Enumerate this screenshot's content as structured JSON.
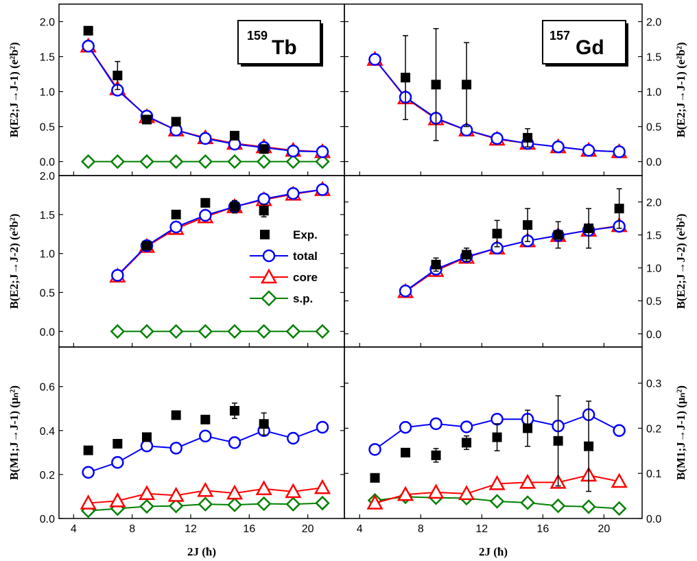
{
  "chart_data": [
    {
      "type": "line",
      "panel": "tb-e2-j1",
      "nucleus": "Tb",
      "mass": "159",
      "ylabel": "B(E2;J→J-1) (e²b²)",
      "xlabel": "",
      "xlim": [
        3,
        22.5
      ],
      "ylim": [
        -0.2,
        2.25
      ],
      "yticks": [
        "0.0",
        "0.5",
        "1.0",
        "1.5",
        "2.0"
      ],
      "xticks": [],
      "axis_side": "left",
      "series": [
        {
          "key": "total",
          "x": [
            5,
            7,
            9,
            11,
            13,
            15,
            17,
            19,
            21
          ],
          "y": [
            1.65,
            1.02,
            0.65,
            0.45,
            0.33,
            0.25,
            0.2,
            0.15,
            0.14
          ]
        },
        {
          "key": "core",
          "x": [
            5,
            7,
            9,
            11,
            13,
            15,
            17,
            19,
            21
          ],
          "y": [
            1.65,
            1.04,
            0.64,
            0.45,
            0.34,
            0.26,
            0.21,
            0.16,
            0.14
          ]
        },
        {
          "key": "sp",
          "x": [
            5,
            7,
            9,
            11,
            13,
            15,
            17,
            19,
            21
          ],
          "y": [
            0,
            0,
            0,
            0,
            0,
            0,
            0,
            0,
            0
          ]
        }
      ],
      "exp": {
        "x": [
          5,
          7,
          9,
          11,
          15,
          17
        ],
        "y": [
          1.87,
          1.23,
          0.6,
          0.57,
          0.37,
          0.18
        ],
        "err": [
          0,
          0.2,
          0,
          0,
          0,
          0
        ]
      }
    },
    {
      "type": "line",
      "panel": "gd-e2-j1",
      "nucleus": "Gd",
      "mass": "157",
      "ylabel": "B(E2;J→J-1) (e²b²)",
      "xlabel": "",
      "xlim": [
        3,
        22.5
      ],
      "ylim": [
        -0.2,
        2.25
      ],
      "yticks": [
        "0.0",
        "0.5",
        "1.0",
        "1.5",
        "2.0"
      ],
      "xticks": [],
      "axis_side": "right",
      "series": [
        {
          "key": "total",
          "x": [
            5,
            7,
            9,
            11,
            13,
            15,
            17,
            19,
            21
          ],
          "y": [
            1.46,
            0.92,
            0.62,
            0.45,
            0.33,
            0.26,
            0.21,
            0.16,
            0.14
          ]
        },
        {
          "key": "core",
          "x": [
            5,
            7,
            9,
            11,
            13,
            15,
            17,
            19,
            21
          ],
          "y": [
            1.46,
            0.91,
            0.61,
            0.45,
            0.32,
            0.26,
            0.21,
            0.16,
            0.14
          ]
        }
      ],
      "exp": {
        "x": [
          7,
          9,
          11,
          15
        ],
        "y": [
          1.2,
          1.1,
          1.1,
          0.34
        ],
        "err": [
          0.6,
          0.8,
          0.6,
          0.13
        ]
      }
    },
    {
      "type": "line",
      "panel": "tb-e2-j2",
      "ylabel": "B(E2;J→J-2) (e²b²)",
      "xlabel": "",
      "xlim": [
        3,
        22.5
      ],
      "ylim": [
        -0.2,
        2.0
      ],
      "yticks": [
        "0.0",
        "0.5",
        "1.0",
        "1.5",
        "2.0"
      ],
      "xticks": [],
      "axis_side": "left",
      "series": [
        {
          "key": "total",
          "x": [
            7,
            9,
            11,
            13,
            15,
            17,
            19,
            21
          ],
          "y": [
            0.72,
            1.1,
            1.34,
            1.49,
            1.6,
            1.7,
            1.77,
            1.82
          ]
        },
        {
          "key": "core",
          "x": [
            7,
            9,
            11,
            13,
            15,
            17,
            19,
            21
          ],
          "y": [
            0.71,
            1.09,
            1.32,
            1.47,
            1.6,
            1.69,
            1.76,
            1.82
          ]
        },
        {
          "key": "sp",
          "x": [
            7,
            9,
            11,
            13,
            15,
            17,
            19,
            21
          ],
          "y": [
            0,
            0,
            0,
            0,
            0,
            0,
            0,
            0
          ]
        }
      ],
      "exp": {
        "x": [
          9,
          11,
          13,
          15,
          17
        ],
        "y": [
          1.1,
          1.5,
          1.65,
          1.6,
          1.55
        ],
        "err": [
          0,
          0,
          0,
          0.08,
          0.08
        ]
      }
    },
    {
      "type": "line",
      "panel": "gd-e2-j2",
      "ylabel": "B(E2;J→J-2) (e²b²)",
      "xlabel": "",
      "xlim": [
        3,
        22.5
      ],
      "ylim": [
        -0.2,
        2.4
      ],
      "yticks": [
        "0.0",
        "0.5",
        "1.0",
        "1.5",
        "2.0"
      ],
      "xticks": [],
      "axis_side": "right",
      "series": [
        {
          "key": "total",
          "x": [
            7,
            9,
            11,
            13,
            15,
            17,
            19,
            21
          ],
          "y": [
            0.65,
            0.98,
            1.17,
            1.3,
            1.41,
            1.49,
            1.57,
            1.63
          ]
        },
        {
          "key": "core",
          "x": [
            7,
            9,
            11,
            13,
            15,
            17,
            19,
            21
          ],
          "y": [
            0.64,
            0.96,
            1.16,
            1.3,
            1.41,
            1.49,
            1.57,
            1.64
          ]
        }
      ],
      "exp": {
        "x": [
          9,
          11,
          13,
          15,
          17,
          19,
          21
        ],
        "y": [
          1.05,
          1.2,
          1.52,
          1.65,
          1.5,
          1.6,
          1.9
        ],
        "err": [
          0.1,
          0.1,
          0.2,
          0.25,
          0.2,
          0.3,
          0.3
        ]
      }
    },
    {
      "type": "line",
      "panel": "tb-m1",
      "ylabel": "B(M1;J→J-1) (μₙ²)",
      "xlabel": "2J (ħ)",
      "xlim": [
        3,
        22.5
      ],
      "ylim": [
        0,
        0.78
      ],
      "yticks": [
        "0.0",
        "0.2",
        "0.4",
        "0.6"
      ],
      "xticks": [
        "4",
        "8",
        "12",
        "16",
        "20"
      ],
      "axis_side": "left",
      "series": [
        {
          "key": "total",
          "x": [
            5,
            7,
            9,
            11,
            13,
            15,
            17,
            19,
            21
          ],
          "y": [
            0.21,
            0.255,
            0.33,
            0.32,
            0.375,
            0.345,
            0.4,
            0.365,
            0.415
          ]
        },
        {
          "key": "core",
          "x": [
            5,
            7,
            9,
            11,
            13,
            15,
            17,
            19,
            21
          ],
          "y": [
            0.07,
            0.08,
            0.113,
            0.105,
            0.127,
            0.115,
            0.135,
            0.122,
            0.14
          ]
        },
        {
          "key": "sp",
          "x": [
            5,
            7,
            9,
            11,
            13,
            15,
            17,
            19,
            21
          ],
          "y": [
            0.035,
            0.045,
            0.055,
            0.057,
            0.065,
            0.062,
            0.067,
            0.065,
            0.07
          ]
        }
      ],
      "exp": {
        "x": [
          5,
          7,
          9,
          11,
          13,
          15,
          17
        ],
        "y": [
          0.31,
          0.34,
          0.37,
          0.47,
          0.45,
          0.49,
          0.43
        ],
        "err": [
          0,
          0,
          0,
          0,
          0,
          0.035,
          0.05
        ]
      }
    },
    {
      "type": "line",
      "panel": "gd-m1",
      "ylabel": "B(M1;J→J-1) (μₙ²)",
      "xlabel": "2J (ħ)",
      "xlim": [
        3,
        22.5
      ],
      "ylim": [
        0,
        0.38
      ],
      "yticks": [
        "0.0",
        "0.1",
        "0.2",
        "0.3"
      ],
      "xticks": [
        "4",
        "8",
        "12",
        "16",
        "20"
      ],
      "axis_side": "right",
      "series": [
        {
          "key": "total",
          "x": [
            5,
            7,
            9,
            11,
            13,
            15,
            17,
            19,
            21
          ],
          "y": [
            0.153,
            0.202,
            0.21,
            0.203,
            0.22,
            0.22,
            0.205,
            0.23,
            0.195
          ]
        },
        {
          "key": "core",
          "x": [
            5,
            7,
            9,
            11,
            13,
            15,
            17,
            19,
            21
          ],
          "y": [
            0.034,
            0.053,
            0.058,
            0.055,
            0.077,
            0.08,
            0.08,
            0.096,
            0.082
          ]
        },
        {
          "key": "sp",
          "x": [
            5,
            7,
            9,
            11,
            13,
            15,
            17,
            19,
            21
          ],
          "y": [
            0.04,
            0.048,
            0.046,
            0.045,
            0.038,
            0.035,
            0.028,
            0.026,
            0.022
          ]
        }
      ],
      "exp": {
        "x": [
          5,
          7,
          9,
          11,
          13,
          15,
          17,
          19
        ],
        "y": [
          0.09,
          0.146,
          0.14,
          0.168,
          0.18,
          0.2,
          0.172,
          0.16
        ],
        "err": [
          0,
          0,
          0.015,
          0.015,
          0.03,
          0.04,
          0.1,
          0.1
        ]
      }
    }
  ],
  "legend": {
    "exp": "Exp.",
    "total": "total",
    "core": "core",
    "sp": "s.p."
  },
  "colors": {
    "total": "#0000ff",
    "core": "#ff0000",
    "sp": "#008000",
    "exp": "#000000"
  },
  "labels": {
    "tb_mass": "159",
    "tb_symbol": "Tb",
    "gd_mass": "157",
    "gd_symbol": "Gd"
  }
}
